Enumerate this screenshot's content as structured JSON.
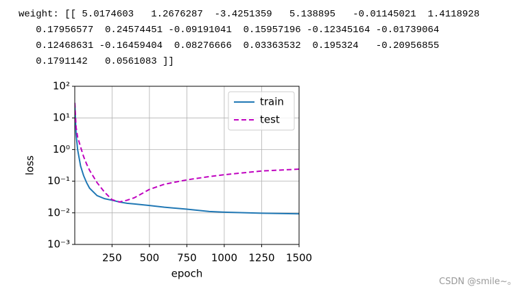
{
  "output_text": [
    "weight: [[ 5.0174603   1.2676287  -3.4251359   5.138895   -0.01145021  1.4118928",
    "   0.17956577  0.24574451 -0.09191041  0.15957196 -0.12345164 -0.01739064",
    "   0.12468631 -0.16459404  0.08276666  0.03363532  0.195324   -0.20956855",
    "   0.1791142   0.0561083 ]]"
  ],
  "chart_data": {
    "type": "line",
    "xlabel": "epoch",
    "ylabel": "loss",
    "yscale": "log",
    "grid": true,
    "legend": "upper right",
    "x": [
      1,
      10,
      20,
      40,
      60,
      80,
      100,
      150,
      200,
      250,
      300,
      350,
      400,
      500,
      600,
      750,
      900,
      1000,
      1250,
      1500
    ],
    "series": [
      {
        "name": "train",
        "color": "#1f77b4",
        "linestyle": "solid",
        "values": [
          30,
          3,
          1,
          0.3,
          0.15,
          0.09,
          0.06,
          0.035,
          0.028,
          0.025,
          0.022,
          0.02,
          0.019,
          0.017,
          0.015,
          0.013,
          0.011,
          0.0105,
          0.0097,
          0.0093
        ]
      },
      {
        "name": "test",
        "color": "#bf00bf",
        "linestyle": "dashed",
        "values": [
          30,
          5,
          2.5,
          1.2,
          0.6,
          0.35,
          0.22,
          0.09,
          0.045,
          0.026,
          0.022,
          0.025,
          0.03,
          0.055,
          0.08,
          0.11,
          0.14,
          0.16,
          0.21,
          0.24
        ]
      }
    ],
    "xlim": [
      1,
      1500
    ],
    "xticks": [
      250,
      500,
      750,
      1000,
      1250,
      1500
    ],
    "ylim": [
      0.001,
      100
    ],
    "yticks": [
      {
        "value": 0.001,
        "label": "10⁻³"
      },
      {
        "value": 0.01,
        "label": "10⁻²"
      },
      {
        "value": 0.1,
        "label": "10⁻¹"
      },
      {
        "value": 1,
        "label": "10⁰"
      },
      {
        "value": 10,
        "label": "10¹"
      },
      {
        "value": 100,
        "label": "10²"
      }
    ]
  },
  "watermark": "CSDN @smile~。"
}
